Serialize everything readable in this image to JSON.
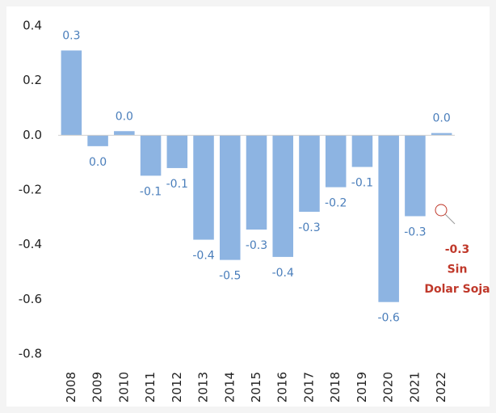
{
  "chart_data": {
    "type": "bar",
    "categories": [
      "2008",
      "2009",
      "2010",
      "2011",
      "2012",
      "2013",
      "2014",
      "2015",
      "2016",
      "2017",
      "2018",
      "2019",
      "2020",
      "2021",
      "2022"
    ],
    "values": [
      0.31,
      -0.04,
      0.015,
      -0.148,
      -0.12,
      -0.382,
      -0.456,
      -0.345,
      -0.445,
      -0.28,
      -0.19,
      -0.116,
      -0.61,
      -0.296,
      0.008
    ],
    "value_labels": [
      "0.3",
      "0.0",
      "0.0",
      "-0.1",
      "-0.1",
      "-0.4",
      "-0.5",
      "-0.3",
      "-0.4",
      "-0.3",
      "-0.2",
      "-0.1",
      "-0.6",
      "-0.3",
      "0.0"
    ],
    "color": "#8db4e2",
    "ylim": [
      -0.8,
      0.4
    ],
    "yticks": [
      {
        "value": 0.4,
        "label": "0.4"
      },
      {
        "value": 0.2,
        "label": "0.2"
      },
      {
        "value": 0,
        "label": "0.0"
      },
      {
        "value": -0.2,
        "label": "-0.2"
      },
      {
        "value": -0.4,
        "label": "-0.4"
      },
      {
        "value": -0.6,
        "label": "-0.6"
      },
      {
        "value": -0.8,
        "label": "-0.8"
      }
    ],
    "annotation": [
      "-0.3",
      "Sin",
      "Dolar Soja"
    ]
  }
}
